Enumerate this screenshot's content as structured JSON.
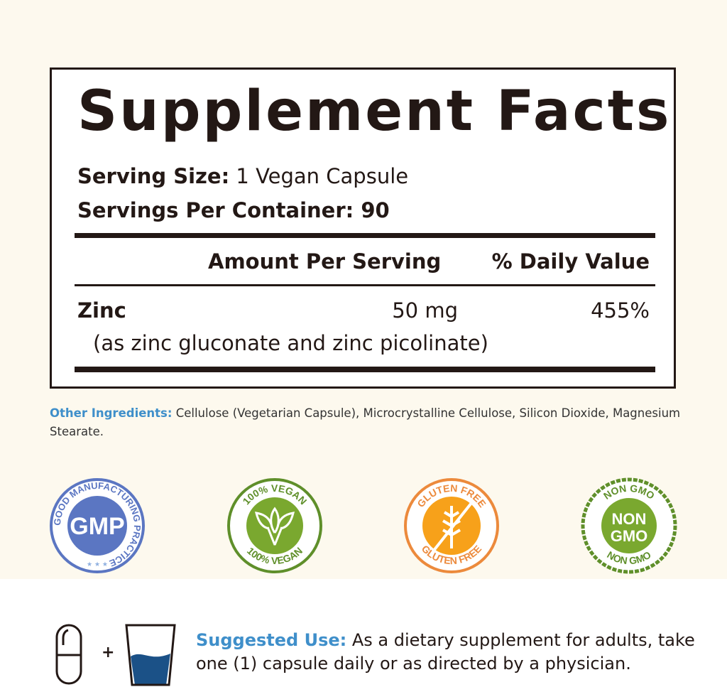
{
  "facts": {
    "title": "Supplement Facts",
    "serving_size_label": "Serving Size:",
    "serving_size_value": "1 Vegan Capsule",
    "servings_label": "Servings Per Container:",
    "servings_value": "90",
    "col_amount": "Amount Per Serving",
    "col_dv": "% Daily Value",
    "rows": [
      {
        "name": "Zinc",
        "amount": "50 mg",
        "dv": "455%",
        "note": "(as zinc gluconate and zinc picolinate)"
      }
    ]
  },
  "other_ingredients": {
    "label": "Other Ingredients:",
    "text": "Cellulose (Vegetarian Capsule), Microcrystalline Cellulose, Silicon Dioxide, Magnesium Stearate."
  },
  "badges": [
    {
      "icon": "gmp-badge",
      "center": "GMP",
      "ring": "GOOD MANUFACTURING PRACTICE",
      "color": "#5b76c2"
    },
    {
      "icon": "vegan-badge",
      "top": "100% VEGAN",
      "bottom": "100% VEGAN",
      "color": "#6a9a2e"
    },
    {
      "icon": "gluten-free-badge",
      "top": "GLUTEN FREE",
      "bottom": "GLUTEN FREE",
      "color": "#f39a1e"
    },
    {
      "icon": "non-gmo-badge",
      "center1": "NON",
      "center2": "GMO",
      "top": "NON GMO",
      "bottom": "NON GMO",
      "color": "#6a9a2e"
    }
  ],
  "suggested_use": {
    "label": "Suggested Use:",
    "text": "As a dietary supplement for adults, take one (1) capsule daily or as directed by a physician.",
    "plus": "+"
  }
}
